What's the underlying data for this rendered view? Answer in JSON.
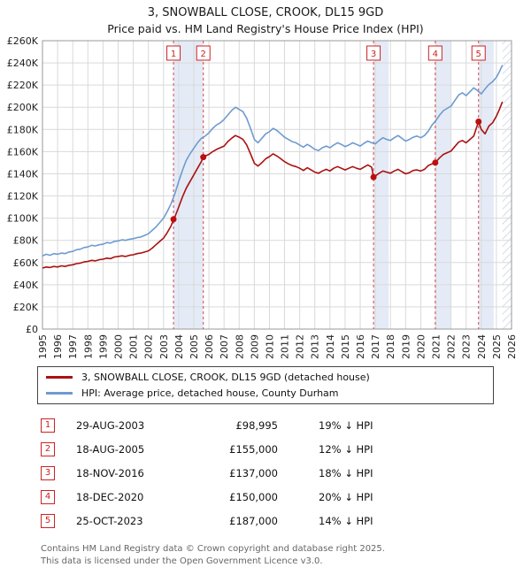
{
  "title": {
    "line1": "3, SNOWBALL CLOSE, CROOK, DL15 9GD",
    "line2": "Price paid vs. HM Land Registry's House Price Index (HPI)"
  },
  "colors": {
    "property_line": "#aa1111",
    "hpi_line": "#6e9bd0",
    "sale_marker": "#bb0f0f",
    "sale_dash_line": "#d64545",
    "band": "#e4ebf7",
    "hatch": "#c2cfe4",
    "grid": "#d9d9d9",
    "frame": "#999999",
    "badge_red": "#cc2222"
  },
  "chart_data": {
    "type": "line",
    "title": "3, SNOWBALL CLOSE, CROOK, DL15 9GD — Price paid vs. HPI",
    "xlabel": "",
    "ylabel": "",
    "grid": true,
    "legend_position": "below",
    "x_range": [
      1995,
      2026
    ],
    "y_range": [
      0,
      260000
    ],
    "x_ticks": [
      1995,
      1996,
      1997,
      1998,
      1999,
      2000,
      2001,
      2002,
      2003,
      2004,
      2005,
      2006,
      2007,
      2008,
      2009,
      2010,
      2011,
      2012,
      2013,
      2014,
      2015,
      2016,
      2017,
      2018,
      2019,
      2020,
      2021,
      2022,
      2023,
      2024,
      2025,
      2026
    ],
    "y_ticks": [
      [
        0,
        "£0"
      ],
      [
        20000,
        "£20K"
      ],
      [
        40000,
        "£40K"
      ],
      [
        60000,
        "£60K"
      ],
      [
        80000,
        "£80K"
      ],
      [
        100000,
        "£100K"
      ],
      [
        120000,
        "£120K"
      ],
      [
        140000,
        "£140K"
      ],
      [
        160000,
        "£160K"
      ],
      [
        180000,
        "£180K"
      ],
      [
        200000,
        "£200K"
      ],
      [
        220000,
        "£220K"
      ],
      [
        240000,
        "£240K"
      ],
      [
        260000,
        "£260K"
      ]
    ],
    "series": [
      {
        "name": "HPI: Average price, detached house, County Durham",
        "color": "#6e9bd0",
        "points": [
          [
            1995.0,
            66000
          ],
          [
            1995.25,
            67500
          ],
          [
            1995.5,
            66500
          ],
          [
            1995.75,
            68000
          ],
          [
            1996.0,
            67500
          ],
          [
            1996.25,
            68500
          ],
          [
            1996.5,
            68000
          ],
          [
            1996.75,
            69500
          ],
          [
            1997.0,
            70000
          ],
          [
            1997.25,
            71500
          ],
          [
            1997.5,
            72000
          ],
          [
            1997.75,
            73500
          ],
          [
            1998.0,
            74000
          ],
          [
            1998.25,
            75500
          ],
          [
            1998.5,
            75000
          ],
          [
            1998.75,
            76000
          ],
          [
            1999.0,
            76500
          ],
          [
            1999.25,
            78000
          ],
          [
            1999.5,
            77500
          ],
          [
            1999.75,
            79000
          ],
          [
            2000.0,
            79500
          ],
          [
            2000.25,
            80500
          ],
          [
            2000.5,
            80000
          ],
          [
            2000.75,
            81000
          ],
          [
            2001.0,
            81500
          ],
          [
            2001.25,
            82500
          ],
          [
            2001.5,
            83000
          ],
          [
            2001.75,
            84500
          ],
          [
            2002.0,
            86000
          ],
          [
            2002.25,
            89000
          ],
          [
            2002.5,
            92000
          ],
          [
            2002.75,
            96000
          ],
          [
            2003.0,
            100000
          ],
          [
            2003.25,
            106000
          ],
          [
            2003.5,
            113000
          ],
          [
            2003.75,
            122000
          ],
          [
            2004.0,
            133000
          ],
          [
            2004.25,
            143000
          ],
          [
            2004.5,
            152000
          ],
          [
            2004.75,
            158000
          ],
          [
            2005.0,
            163000
          ],
          [
            2005.25,
            168000
          ],
          [
            2005.5,
            172000
          ],
          [
            2005.75,
            174000
          ],
          [
            2006.0,
            177000
          ],
          [
            2006.25,
            181000
          ],
          [
            2006.5,
            184000
          ],
          [
            2006.75,
            186000
          ],
          [
            2007.0,
            189000
          ],
          [
            2007.25,
            193000
          ],
          [
            2007.5,
            197000
          ],
          [
            2007.75,
            200000
          ],
          [
            2008.0,
            198000
          ],
          [
            2008.25,
            196000
          ],
          [
            2008.5,
            190000
          ],
          [
            2008.75,
            181000
          ],
          [
            2009.0,
            171000
          ],
          [
            2009.25,
            168000
          ],
          [
            2009.5,
            172000
          ],
          [
            2009.75,
            176000
          ],
          [
            2010.0,
            178000
          ],
          [
            2010.25,
            181000
          ],
          [
            2010.5,
            179000
          ],
          [
            2010.75,
            176000
          ],
          [
            2011.0,
            173000
          ],
          [
            2011.25,
            171000
          ],
          [
            2011.5,
            169000
          ],
          [
            2011.75,
            168000
          ],
          [
            2012.0,
            166000
          ],
          [
            2012.25,
            164000
          ],
          [
            2012.5,
            166500
          ],
          [
            2012.75,
            164500
          ],
          [
            2013.0,
            162000
          ],
          [
            2013.25,
            161000
          ],
          [
            2013.5,
            163500
          ],
          [
            2013.75,
            165000
          ],
          [
            2014.0,
            163500
          ],
          [
            2014.25,
            166000
          ],
          [
            2014.5,
            168000
          ],
          [
            2014.75,
            166500
          ],
          [
            2015.0,
            164500
          ],
          [
            2015.25,
            166000
          ],
          [
            2015.5,
            168000
          ],
          [
            2015.75,
            166500
          ],
          [
            2016.0,
            165000
          ],
          [
            2016.25,
            167500
          ],
          [
            2016.5,
            169500
          ],
          [
            2016.75,
            168000
          ],
          [
            2017.0,
            167000
          ],
          [
            2017.25,
            170000
          ],
          [
            2017.5,
            172500
          ],
          [
            2017.75,
            171000
          ],
          [
            2018.0,
            170000
          ],
          [
            2018.25,
            172500
          ],
          [
            2018.5,
            174500
          ],
          [
            2018.75,
            172000
          ],
          [
            2019.0,
            169500
          ],
          [
            2019.25,
            171000
          ],
          [
            2019.5,
            173000
          ],
          [
            2019.75,
            174000
          ],
          [
            2020.0,
            172500
          ],
          [
            2020.25,
            174500
          ],
          [
            2020.5,
            178500
          ],
          [
            2020.75,
            184000
          ],
          [
            2021.0,
            188000
          ],
          [
            2021.25,
            193000
          ],
          [
            2021.5,
            197000
          ],
          [
            2021.75,
            199000
          ],
          [
            2022.0,
            201000
          ],
          [
            2022.25,
            206000
          ],
          [
            2022.5,
            211000
          ],
          [
            2022.75,
            213000
          ],
          [
            2023.0,
            210500
          ],
          [
            2023.25,
            214000
          ],
          [
            2023.5,
            217500
          ],
          [
            2023.75,
            215000
          ],
          [
            2024.0,
            212000
          ],
          [
            2024.25,
            216500
          ],
          [
            2024.5,
            220500
          ],
          [
            2024.75,
            223000
          ],
          [
            2025.0,
            227000
          ],
          [
            2025.2,
            232000
          ],
          [
            2025.4,
            238000
          ]
        ]
      },
      {
        "name": "3, SNOWBALL CLOSE, CROOK, DL15 9GD (detached house)",
        "color": "#aa1111",
        "points": [
          [
            1995.0,
            55000
          ],
          [
            1995.25,
            56000
          ],
          [
            1995.5,
            55500
          ],
          [
            1995.75,
            56500
          ],
          [
            1996.0,
            56000
          ],
          [
            1996.25,
            57000
          ],
          [
            1996.5,
            56500
          ],
          [
            1996.75,
            57500
          ],
          [
            1997.0,
            58000
          ],
          [
            1997.25,
            59000
          ],
          [
            1997.5,
            59500
          ],
          [
            1997.75,
            60500
          ],
          [
            1998.0,
            61000
          ],
          [
            1998.25,
            62000
          ],
          [
            1998.5,
            61500
          ],
          [
            1998.75,
            62500
          ],
          [
            1999.0,
            63000
          ],
          [
            1999.25,
            64000
          ],
          [
            1999.5,
            63500
          ],
          [
            1999.75,
            65000
          ],
          [
            2000.0,
            65500
          ],
          [
            2000.25,
            66000
          ],
          [
            2000.5,
            65500
          ],
          [
            2000.75,
            66500
          ],
          [
            2001.0,
            67000
          ],
          [
            2001.25,
            68000
          ],
          [
            2001.5,
            68500
          ],
          [
            2001.75,
            69500
          ],
          [
            2002.0,
            70500
          ],
          [
            2002.25,
            73000
          ],
          [
            2002.5,
            76000
          ],
          [
            2002.75,
            79000
          ],
          [
            2003.0,
            82000
          ],
          [
            2003.25,
            87000
          ],
          [
            2003.5,
            93000
          ],
          [
            2003.66,
            98995
          ],
          [
            2003.75,
            101000
          ],
          [
            2004.0,
            110000
          ],
          [
            2004.25,
            119000
          ],
          [
            2004.5,
            127000
          ],
          [
            2004.75,
            133000
          ],
          [
            2005.0,
            139000
          ],
          [
            2005.25,
            145000
          ],
          [
            2005.5,
            151000
          ],
          [
            2005.63,
            155000
          ],
          [
            2005.75,
            156000
          ],
          [
            2006.0,
            157500
          ],
          [
            2006.25,
            160000
          ],
          [
            2006.5,
            162000
          ],
          [
            2006.75,
            163500
          ],
          [
            2007.0,
            165000
          ],
          [
            2007.25,
            169000
          ],
          [
            2007.5,
            172000
          ],
          [
            2007.75,
            174500
          ],
          [
            2008.0,
            173000
          ],
          [
            2008.25,
            171000
          ],
          [
            2008.5,
            166000
          ],
          [
            2008.75,
            158000
          ],
          [
            2009.0,
            149500
          ],
          [
            2009.25,
            147000
          ],
          [
            2009.5,
            150000
          ],
          [
            2009.75,
            153500
          ],
          [
            2010.0,
            155500
          ],
          [
            2010.25,
            158000
          ],
          [
            2010.5,
            156000
          ],
          [
            2010.75,
            153500
          ],
          [
            2011.0,
            151000
          ],
          [
            2011.25,
            149000
          ],
          [
            2011.5,
            147500
          ],
          [
            2011.75,
            146500
          ],
          [
            2012.0,
            145000
          ],
          [
            2012.25,
            143000
          ],
          [
            2012.5,
            145500
          ],
          [
            2012.75,
            143500
          ],
          [
            2013.0,
            141500
          ],
          [
            2013.25,
            140500
          ],
          [
            2013.5,
            142500
          ],
          [
            2013.75,
            144000
          ],
          [
            2014.0,
            142500
          ],
          [
            2014.25,
            145000
          ],
          [
            2014.5,
            146500
          ],
          [
            2014.75,
            145000
          ],
          [
            2015.0,
            143500
          ],
          [
            2015.25,
            145000
          ],
          [
            2015.5,
            146500
          ],
          [
            2015.75,
            145000
          ],
          [
            2016.0,
            144000
          ],
          [
            2016.25,
            146000
          ],
          [
            2016.5,
            148000
          ],
          [
            2016.75,
            146000
          ],
          [
            2016.88,
            137000
          ],
          [
            2017.0,
            138000
          ],
          [
            2017.25,
            140500
          ],
          [
            2017.5,
            142500
          ],
          [
            2017.75,
            141500
          ],
          [
            2018.0,
            140500
          ],
          [
            2018.25,
            142500
          ],
          [
            2018.5,
            144000
          ],
          [
            2018.75,
            142000
          ],
          [
            2019.0,
            140000
          ],
          [
            2019.25,
            141000
          ],
          [
            2019.5,
            143000
          ],
          [
            2019.75,
            143500
          ],
          [
            2020.0,
            142500
          ],
          [
            2020.25,
            144000
          ],
          [
            2020.5,
            147500
          ],
          [
            2020.75,
            149000
          ],
          [
            2020.96,
            150000
          ],
          [
            2021.25,
            154500
          ],
          [
            2021.5,
            157500
          ],
          [
            2021.75,
            159000
          ],
          [
            2022.0,
            160500
          ],
          [
            2022.25,
            164500
          ],
          [
            2022.5,
            168500
          ],
          [
            2022.75,
            170000
          ],
          [
            2023.0,
            168000
          ],
          [
            2023.25,
            171000
          ],
          [
            2023.5,
            174000
          ],
          [
            2023.82,
            187000
          ],
          [
            2024.0,
            180000
          ],
          [
            2024.25,
            176000
          ],
          [
            2024.5,
            183000
          ],
          [
            2024.75,
            186000
          ],
          [
            2025.0,
            192000
          ],
          [
            2025.2,
            198000
          ],
          [
            2025.4,
            205000
          ]
        ]
      }
    ],
    "sales": [
      {
        "label": "1",
        "x": 2003.66,
        "price": 98995
      },
      {
        "label": "2",
        "x": 2005.63,
        "price": 155000
      },
      {
        "label": "3",
        "x": 2016.88,
        "price": 137000
      },
      {
        "label": "4",
        "x": 2020.96,
        "price": 150000
      },
      {
        "label": "5",
        "x": 2023.82,
        "price": 187000
      }
    ],
    "bands": [
      [
        2003.66,
        2005.63
      ],
      [
        2016.88,
        2017.88
      ],
      [
        2020.96,
        2021.96
      ],
      [
        2023.82,
        2024.82
      ]
    ],
    "hatch_region": [
      2025.4,
      2026
    ]
  },
  "legend": {
    "items": [
      {
        "label": "3, SNOWBALL CLOSE, CROOK, DL15 9GD (detached house)",
        "color": "#aa1111"
      },
      {
        "label": "HPI: Average price, detached house, County Durham",
        "color": "#6e9bd0"
      }
    ]
  },
  "table": {
    "rows": [
      {
        "num": "1",
        "date": "29-AUG-2003",
        "price": "£98,995",
        "hpi": "19% ↓ HPI"
      },
      {
        "num": "2",
        "date": "18-AUG-2005",
        "price": "£155,000",
        "hpi": "12% ↓ HPI"
      },
      {
        "num": "3",
        "date": "18-NOV-2016",
        "price": "£137,000",
        "hpi": "18% ↓ HPI"
      },
      {
        "num": "4",
        "date": "18-DEC-2020",
        "price": "£150,000",
        "hpi": "20% ↓ HPI"
      },
      {
        "num": "5",
        "date": "25-OCT-2023",
        "price": "£187,000",
        "hpi": "14% ↓ HPI"
      }
    ]
  },
  "footer": {
    "line1": "Contains HM Land Registry data © Crown copyright and database right 2025.",
    "line2": "This data is licensed under the Open Government Licence v3.0."
  }
}
